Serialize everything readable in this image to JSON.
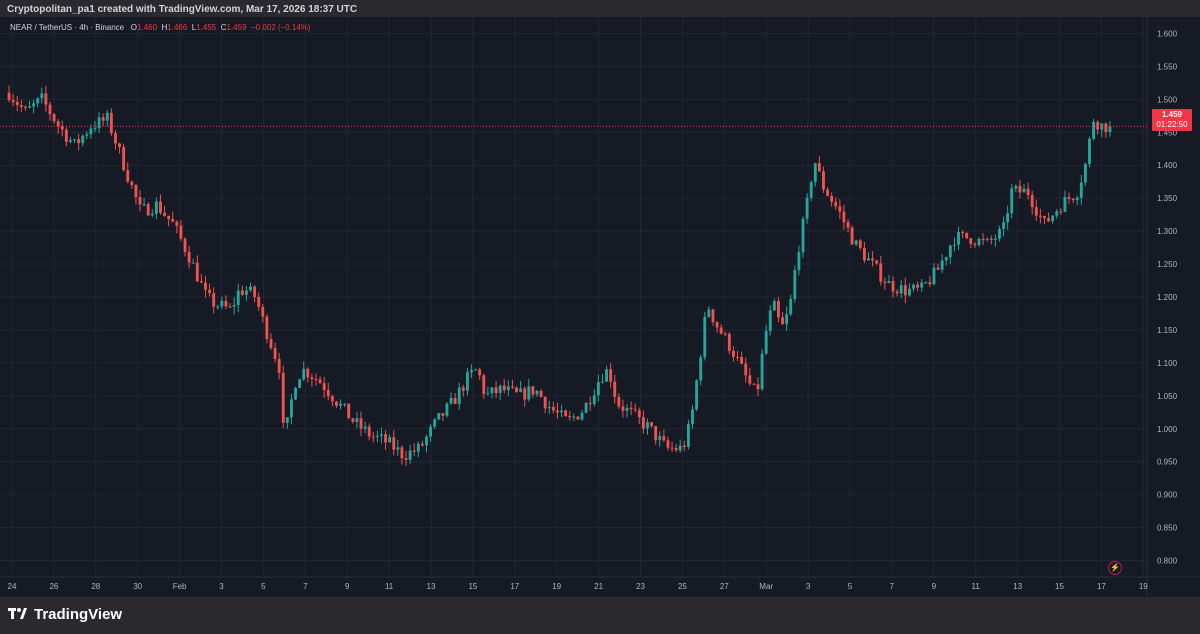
{
  "header": {
    "credit": "Cryptopolitan_pa1 created with TradingView.com, Mar 17, 2026 18:37 UTC"
  },
  "legend": {
    "symbol": "NEAR / TetherUS · 4h · Binance",
    "o_label": "O",
    "o_value": "1.460",
    "h_label": "H",
    "h_value": "1.466",
    "l_label": "L",
    "l_value": "1.455",
    "c_label": "C",
    "c_value": "1.459",
    "change": "−0.002 (−0.14%)"
  },
  "price_tag": {
    "price": "1.459",
    "countdown": "01:22:50"
  },
  "footer": {
    "brand": "TradingView"
  },
  "colors": {
    "background": "#161a25",
    "up": "#26a69a",
    "down": "#ef5350",
    "grid": "#232632",
    "axis_text": "#b2b5be",
    "price_line": "#f23645"
  },
  "chart_data": {
    "type": "candlestick",
    "ylim": [
      0.775,
      1.625
    ],
    "y_ticks": [
      "1.600",
      "1.550",
      "1.500",
      "1.450",
      "1.400",
      "1.350",
      "1.300",
      "1.250",
      "1.200",
      "1.150",
      "1.100",
      "1.050",
      "1.000",
      "0.950",
      "0.900",
      "0.850",
      "0.800"
    ],
    "x_ticks": [
      "24",
      "26",
      "28",
      "30",
      "Feb",
      "3",
      "5",
      "7",
      "9",
      "11",
      "13",
      "15",
      "17",
      "19",
      "21",
      "23",
      "25",
      "27",
      "Mar",
      "3",
      "5",
      "7",
      "9",
      "11",
      "13",
      "15",
      "17",
      "19"
    ],
    "current_price": 1.459,
    "close_path": [
      [
        0,
        1.51
      ],
      [
        2,
        1.48
      ],
      [
        4,
        1.5
      ],
      [
        6,
        1.46
      ],
      [
        8,
        1.43
      ],
      [
        10,
        1.46
      ],
      [
        12,
        1.47
      ],
      [
        14,
        1.4
      ],
      [
        16,
        1.33
      ],
      [
        18,
        1.34
      ],
      [
        20,
        1.31
      ],
      [
        22,
        1.26
      ],
      [
        24,
        1.2
      ],
      [
        25,
        1.19
      ],
      [
        27,
        1.18
      ],
      [
        28,
        1.21
      ],
      [
        29,
        1.21
      ],
      [
        30,
        1.2
      ],
      [
        31,
        1.16
      ],
      [
        33,
        1.09
      ],
      [
        33.5,
        0.97
      ],
      [
        34,
        1.02
      ],
      [
        35,
        1.08
      ],
      [
        36,
        1.09
      ],
      [
        38,
        1.07
      ],
      [
        40,
        1.04
      ],
      [
        42,
        1.01
      ],
      [
        44,
        0.99
      ],
      [
        46,
        0.98
      ],
      [
        48,
        0.96
      ],
      [
        50,
        0.97
      ],
      [
        52,
        1.01
      ],
      [
        54,
        1.04
      ],
      [
        56,
        1.08
      ],
      [
        57,
        1.09
      ],
      [
        58,
        1.05
      ],
      [
        60,
        1.06
      ],
      [
        62,
        1.05
      ],
      [
        64,
        1.06
      ],
      [
        66,
        1.03
      ],
      [
        68,
        1.01
      ],
      [
        70,
        1.03
      ],
      [
        72,
        1.08
      ],
      [
        73,
        1.09
      ],
      [
        74,
        1.04
      ],
      [
        76,
        1.02
      ],
      [
        78,
        1.0
      ],
      [
        80,
        0.97
      ],
      [
        82,
        0.97
      ],
      [
        83,
        1.01
      ],
      [
        84,
        1.1
      ],
      [
        85,
        1.19
      ],
      [
        86,
        1.16
      ],
      [
        88,
        1.12
      ],
      [
        90,
        1.07
      ],
      [
        91,
        1.05
      ],
      [
        92,
        1.14
      ],
      [
        93,
        1.19
      ],
      [
        94,
        1.15
      ],
      [
        95,
        1.18
      ],
      [
        96,
        1.27
      ],
      [
        97,
        1.33
      ],
      [
        98,
        1.41
      ],
      [
        99,
        1.37
      ],
      [
        101,
        1.33
      ],
      [
        103,
        1.28
      ],
      [
        105,
        1.25
      ],
      [
        107,
        1.22
      ],
      [
        109,
        1.21
      ],
      [
        111,
        1.21
      ],
      [
        113,
        1.24
      ],
      [
        115,
        1.29
      ],
      [
        117,
        1.29
      ],
      [
        119,
        1.28
      ],
      [
        121,
        1.3
      ],
      [
        122,
        1.36
      ],
      [
        124,
        1.36
      ],
      [
        126,
        1.31
      ],
      [
        128,
        1.34
      ],
      [
        130,
        1.36
      ],
      [
        131,
        1.4
      ],
      [
        132,
        1.47
      ],
      [
        133,
        1.46
      ],
      [
        134,
        1.459
      ]
    ]
  }
}
